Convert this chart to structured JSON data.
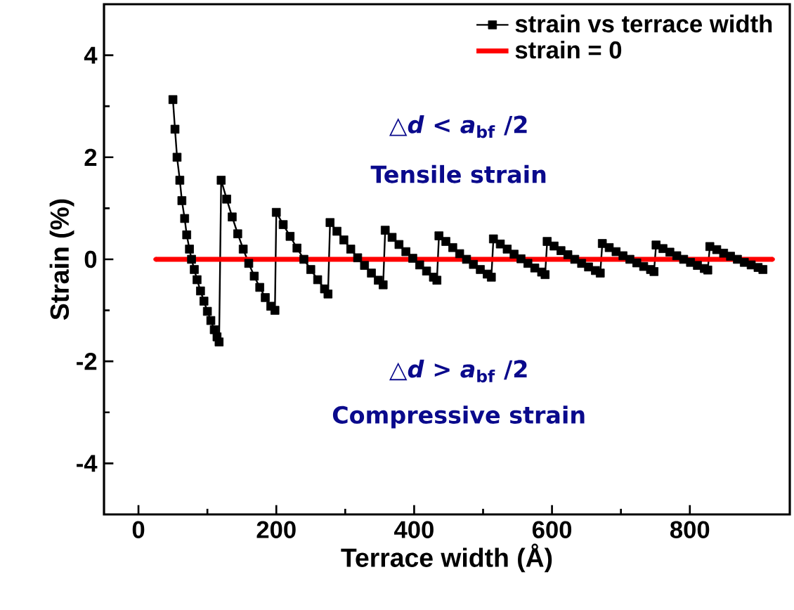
{
  "chart_data": {
    "type": "line",
    "xlabel": "Terrace width (Å)",
    "ylabel": "Strain (%)",
    "xlim": [
      -50,
      945
    ],
    "ylim": [
      -5,
      5
    ],
    "xticks": [
      0,
      200,
      400,
      600,
      800
    ],
    "yticks": [
      -4,
      -2,
      0,
      2,
      4
    ],
    "legend": "top right",
    "grid": false,
    "annotations": [
      "△*d* < *a*$_{bf}$ /2",
      "Tensile strain",
      "△*d* > *a*$_{bf}$ /2",
      "Compressive strain"
    ],
    "series": [
      {
        "name": "strain vs terrace width",
        "color": "#000000",
        "marker": "square",
        "x": [
          50,
          53,
          56,
          60,
          63,
          67,
          70,
          74,
          77,
          81,
          85,
          90,
          95,
          100,
          105,
          110,
          114,
          117,
          120,
          128,
          136,
          144,
          152,
          160,
          168,
          176,
          184,
          192,
          198,
          200,
          210,
          220,
          230,
          240,
          250,
          260,
          270,
          275,
          278,
          288,
          298,
          308,
          318,
          328,
          338,
          348,
          355,
          358,
          368,
          378,
          388,
          398,
          408,
          418,
          428,
          433,
          436,
          446,
          456,
          466,
          476,
          486,
          496,
          506,
          512,
          515,
          525,
          535,
          545,
          555,
          565,
          575,
          585,
          590,
          593,
          603,
          613,
          623,
          633,
          643,
          653,
          663,
          670,
          673,
          683,
          693,
          703,
          713,
          723,
          733,
          743,
          748,
          751,
          761,
          771,
          781,
          791,
          801,
          811,
          821,
          826,
          829,
          839,
          849,
          859,
          869,
          879,
          889,
          899,
          906
        ],
        "values": [
          3.13,
          2.55,
          2.0,
          1.55,
          1.15,
          0.8,
          0.48,
          0.2,
          0.0,
          -0.2,
          -0.4,
          -0.62,
          -0.82,
          -1.02,
          -1.2,
          -1.38,
          -1.52,
          -1.62,
          1.55,
          1.18,
          0.83,
          0.5,
          0.2,
          -0.08,
          -0.33,
          -0.55,
          -0.75,
          -0.92,
          -1.0,
          0.92,
          0.68,
          0.45,
          0.22,
          0.0,
          -0.2,
          -0.4,
          -0.58,
          -0.68,
          0.72,
          0.55,
          0.38,
          0.2,
          0.03,
          -0.12,
          -0.27,
          -0.41,
          -0.5,
          0.57,
          0.43,
          0.29,
          0.15,
          0.02,
          -0.11,
          -0.23,
          -0.35,
          -0.41,
          0.46,
          0.35,
          0.23,
          0.11,
          0.0,
          -0.1,
          -0.2,
          -0.29,
          -0.35,
          0.4,
          0.3,
          0.2,
          0.1,
          0.01,
          -0.08,
          -0.17,
          -0.25,
          -0.3,
          0.35,
          0.26,
          0.17,
          0.09,
          0.0,
          -0.08,
          -0.15,
          -0.22,
          -0.27,
          0.31,
          0.23,
          0.15,
          0.07,
          0.0,
          -0.07,
          -0.14,
          -0.2,
          -0.24,
          0.28,
          0.21,
          0.14,
          0.07,
          0.0,
          -0.06,
          -0.12,
          -0.18,
          -0.21,
          0.25,
          0.19,
          0.12,
          0.06,
          0.0,
          -0.06,
          -0.11,
          -0.16,
          -0.2
        ]
      },
      {
        "name": "strain = 0",
        "color": "#ff0000",
        "marker": "circle",
        "x": [
          25,
          920
        ],
        "values": [
          0,
          0
        ]
      }
    ]
  }
}
